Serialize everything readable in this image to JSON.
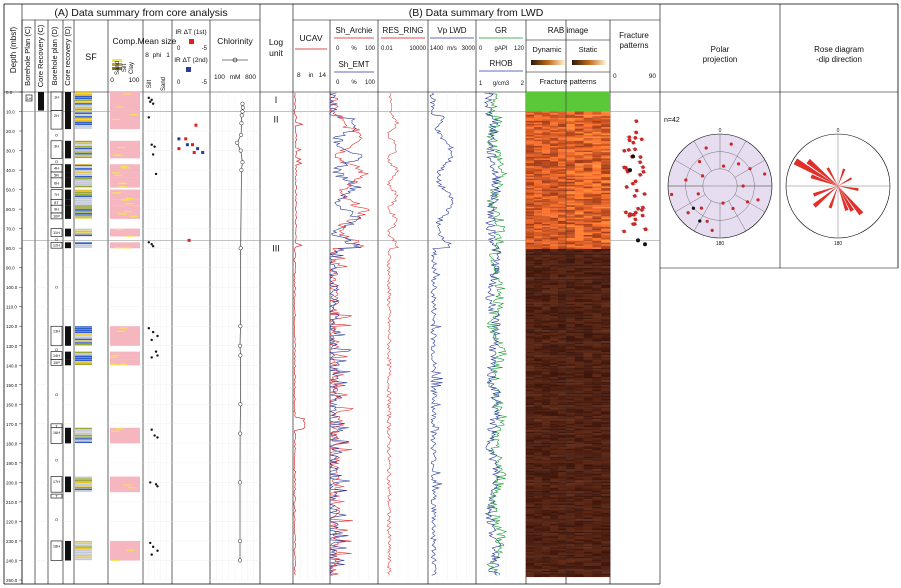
{
  "headers": {
    "left_title": "(A) Data summary from core analysis",
    "right_title": "(B) Data summary from LWD",
    "depth_label": "Depth  (mbsf)",
    "borehole_plan_c": "Borehole Plan (C)",
    "core_recovery_c": "Core Recovery (C)",
    "borehole_plan_d": "Borehole plan (D)",
    "core_recovery_d": "Core recovery (D)",
    "sf": "SF",
    "comp": "Comp.",
    "comp_legend": [
      "Sand",
      "Silt",
      "Clay"
    ],
    "comp_scale": [
      "0",
      "100"
    ],
    "mean_size": "Mean size",
    "mean_size_scale": [
      "8",
      "phi",
      "1"
    ],
    "mean_size_legend": [
      "Silt",
      "Sand"
    ],
    "ir1": "IR ΔT (1st)",
    "ir2": "IR ΔT (2nd)",
    "ir_scale": [
      "0",
      "-5"
    ],
    "chlorinity": "Chlorinity",
    "chlor_scale": [
      "100",
      "mM",
      "800"
    ],
    "log_unit": "Log unit",
    "ucav": "UCAV",
    "ucav_scale": [
      "8",
      "in",
      "14"
    ],
    "sh_archie": "Sh_Archie",
    "sh_emt": "Sh_EMT",
    "sh_scale": [
      "0",
      "%",
      "100"
    ],
    "res_ring": "RES_RING",
    "res_scale": [
      "0.01",
      "10000"
    ],
    "vp_lwd": "Vp LWD",
    "vp_scale": [
      "1400",
      "m/s",
      "3000"
    ],
    "gr": "GR",
    "gr_scale": [
      "0",
      "gAPI",
      "120"
    ],
    "rhob": "RHOB",
    "rhob_scale": [
      "1",
      "g/cm3",
      "2"
    ],
    "rab_image": "RAB image",
    "dynamic": "Dynamic",
    "static": "Static",
    "fracture_patterns_hdr": "Fracture patterns",
    "fracture_patterns": "Fracture\npatterns",
    "frac_scale": [
      "0",
      "90"
    ],
    "polar": "Polar\nprojection",
    "rose": "Rose diagram\n-dip direction",
    "n_label": "n=42",
    "polar_ticks": [
      "0",
      "180"
    ]
  },
  "depth_axis": {
    "ticks": [
      "0.0",
      "10.0",
      "20.0",
      "30.0",
      "40.0",
      "50.0",
      "60.0",
      "70.0",
      "80.0",
      "90.0",
      "100.0",
      "110.0",
      "120.0",
      "130.0",
      "140.0",
      "150.0",
      "160.0",
      "170.0",
      "180.0",
      "190.0",
      "200.0",
      "210.0",
      "220.0",
      "230.0",
      "240.0",
      "250.0"
    ]
  },
  "log_units": [
    {
      "label": "I",
      "top": 0,
      "bottom": 10
    },
    {
      "label": "II",
      "top": 10,
      "bottom": 76
    },
    {
      "label": "III",
      "top": 76,
      "bottom": 250
    }
  ],
  "cores": [
    {
      "label": "1H",
      "top": 0,
      "bottom": 9.5
    },
    {
      "label": "2H",
      "top": 9.5,
      "bottom": 19
    },
    {
      "label": "O",
      "top": 19,
      "bottom": 25
    },
    {
      "label": "3H",
      "top": 25,
      "bottom": 34
    },
    {
      "label": "O",
      "top": 34,
      "bottom": 37
    },
    {
      "label": "4H",
      "top": 37,
      "bottom": 41
    },
    {
      "label": "5R",
      "top": 41,
      "bottom": 44
    },
    {
      "label": "6H",
      "top": 44,
      "bottom": 49
    },
    {
      "label": "7H",
      "top": 50,
      "bottom": 55
    },
    {
      "label": "8T",
      "top": 55,
      "bottom": 58
    },
    {
      "label": "9H",
      "top": 58,
      "bottom": 62
    },
    {
      "label": "10P",
      "top": 62,
      "bottom": 65
    },
    {
      "label": "11H",
      "top": 70,
      "bottom": 74
    },
    {
      "label": "O",
      "top": 74,
      "bottom": 77
    },
    {
      "label": "12H",
      "top": 77,
      "bottom": 80
    },
    {
      "label": "O",
      "top": 80,
      "bottom": 120
    },
    {
      "label": "13H",
      "top": 120,
      "bottom": 130
    },
    {
      "label": "O",
      "top": 131,
      "bottom": 133
    },
    {
      "label": "14H",
      "top": 133,
      "bottom": 137
    },
    {
      "label": "15P",
      "top": 137,
      "bottom": 140
    },
    {
      "label": "O",
      "top": 140,
      "bottom": 170
    },
    {
      "label": "T",
      "top": 170,
      "bottom": 172
    },
    {
      "label": "16H",
      "top": 172,
      "bottom": 180
    },
    {
      "label": "O",
      "top": 180,
      "bottom": 197
    },
    {
      "label": "17H",
      "top": 197,
      "bottom": 205
    },
    {
      "label": "T",
      "top": 206,
      "bottom": 208
    },
    {
      "label": "O",
      "top": 208,
      "bottom": 230
    },
    {
      "label": "18H",
      "top": 230,
      "bottom": 240
    }
  ],
  "chart_data": {
    "type": "line",
    "depth_range": [
      0,
      250
    ],
    "chlorinity": [
      [
        6,
        555
      ],
      [
        8,
        560
      ],
      [
        10,
        555
      ],
      [
        12,
        545
      ],
      [
        16,
        540
      ],
      [
        22,
        535
      ],
      [
        26,
        480
      ],
      [
        30,
        530
      ],
      [
        36,
        555
      ],
      [
        40,
        540
      ],
      [
        80,
        530
      ],
      [
        120,
        525
      ],
      [
        130,
        520
      ],
      [
        135,
        525
      ],
      [
        160,
        525
      ],
      [
        175,
        522
      ],
      [
        200,
        520
      ],
      [
        230,
        520
      ],
      [
        240,
        520
      ]
    ],
    "mean_size_points": [
      [
        3,
        0.2
      ],
      [
        4,
        0.3
      ],
      [
        5,
        0.25
      ],
      [
        6,
        0.35
      ],
      [
        13,
        0.2
      ],
      [
        27,
        0.3
      ],
      [
        28,
        0.4
      ],
      [
        32,
        0.35
      ],
      [
        42,
        0.45
      ],
      [
        77,
        0.2
      ],
      [
        78,
        0.3
      ],
      [
        79,
        0.35
      ],
      [
        121,
        0.2
      ],
      [
        123,
        0.35
      ],
      [
        125,
        0.5
      ],
      [
        127,
        0.3
      ],
      [
        133,
        0.45
      ],
      [
        135,
        0.5
      ],
      [
        136,
        0.3
      ],
      [
        173,
        0.3
      ],
      [
        176,
        0.4
      ],
      [
        177,
        0.5
      ],
      [
        200,
        0.25
      ],
      [
        201,
        0.45
      ],
      [
        202,
        0.5
      ],
      [
        231,
        0.25
      ],
      [
        233,
        0.35
      ],
      [
        235,
        0.5
      ],
      [
        237,
        0.3
      ]
    ],
    "ir1_points": [
      [
        17,
        0.6
      ],
      [
        24,
        0.3
      ],
      [
        27,
        0.5
      ],
      [
        29,
        0.1
      ],
      [
        31,
        0.55
      ],
      [
        76,
        0.4
      ]
    ],
    "ir2_points": [
      [
        24,
        0.1
      ],
      [
        27,
        0.35
      ],
      [
        29,
        0.65
      ],
      [
        31,
        0.8
      ]
    ],
    "polar_points": [
      [
        10,
        35
      ],
      [
        40,
        50
      ],
      [
        60,
        60
      ],
      [
        90,
        40
      ],
      [
        120,
        55
      ],
      [
        150,
        45
      ],
      [
        170,
        30
      ],
      [
        200,
        65
      ],
      [
        220,
        50
      ],
      [
        250,
        40
      ],
      [
        280,
        60
      ],
      [
        300,
        35
      ],
      [
        320,
        55
      ],
      [
        340,
        70
      ],
      [
        15,
        75
      ],
      [
        75,
        80
      ],
      [
        110,
        70
      ],
      [
        190,
        78
      ],
      [
        230,
        72
      ],
      [
        260,
        85
      ]
    ],
    "rose_petals": [
      [
        300,
        0.95
      ],
      [
        310,
        0.75
      ],
      [
        290,
        0.55
      ],
      [
        140,
        0.7
      ],
      [
        150,
        0.55
      ],
      [
        160,
        0.5
      ],
      [
        200,
        0.45
      ],
      [
        230,
        0.6
      ],
      [
        250,
        0.5
      ],
      [
        20,
        0.35
      ],
      [
        60,
        0.3
      ],
      [
        100,
        0.4
      ],
      [
        330,
        0.4
      ]
    ]
  }
}
